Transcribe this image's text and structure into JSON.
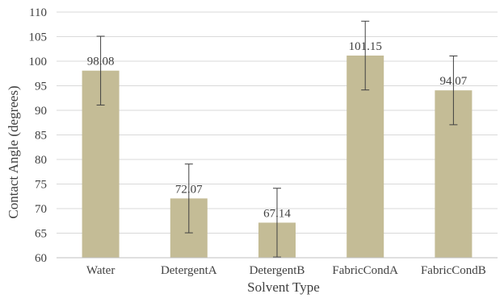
{
  "chart_data": {
    "type": "bar",
    "categories": [
      "Water",
      "DetergentA",
      "DetergentB",
      "FabricCondA",
      "FabricCondB"
    ],
    "values": [
      98.08,
      72.07,
      67.14,
      101.15,
      94.07
    ],
    "value_labels": [
      "98.08",
      "72.07",
      "67.14",
      "101.15",
      "94.07"
    ],
    "error": [
      7,
      7,
      7,
      7,
      7
    ],
    "xlabel": "Solvent Type",
    "ylabel": "Contact Angle (degrees)",
    "ylim": [
      60,
      110
    ],
    "yticks": [
      60,
      65,
      70,
      75,
      80,
      85,
      90,
      95,
      100,
      105,
      110
    ],
    "ytick_labels": [
      "60",
      "65",
      "70",
      "75",
      "80",
      "85",
      "90",
      "95",
      "100",
      "105",
      "110"
    ],
    "grid": true,
    "bar_color": "#c4bc96",
    "grid_color": "#d9d9d9",
    "errorbar_color": "#404040"
  }
}
